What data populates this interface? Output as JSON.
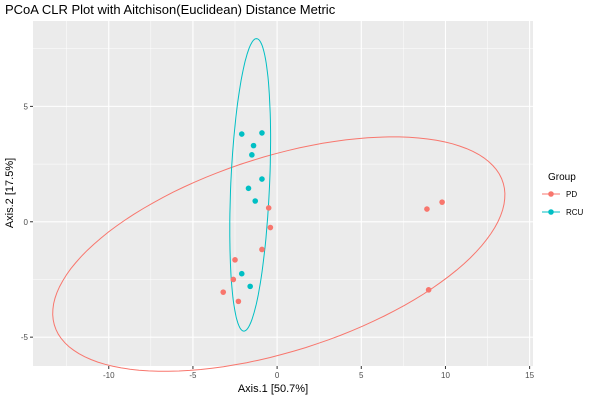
{
  "chart_data": {
    "type": "scatter",
    "title": "PCoA CLR Plot with Aitchison(Euclidean) Distance Metric",
    "xlabel": "Axis.1   [50.7%]",
    "ylabel": "Axis.2   [17.5%]",
    "xlim": [
      -14.5,
      15.2
    ],
    "ylim": [
      -6.25,
      8.7
    ],
    "xticks": [
      -10,
      -5,
      0,
      5,
      10,
      15
    ],
    "yticks": [
      -5,
      0,
      5
    ],
    "grid": true,
    "background": "#ebebeb",
    "legend": {
      "title": "Group",
      "position": "right",
      "entries": [
        "PD",
        "RCU"
      ]
    },
    "series": [
      {
        "name": "PD",
        "color": "#f8766d",
        "points": [
          [
            -0.5,
            0.6
          ],
          [
            -0.4,
            -0.25
          ],
          [
            -0.9,
            -1.2
          ],
          [
            -2.5,
            -1.65
          ],
          [
            -2.6,
            -2.5
          ],
          [
            -3.2,
            -3.05
          ],
          [
            -2.3,
            -3.45
          ],
          [
            8.9,
            0.55
          ],
          [
            9.8,
            0.85
          ],
          [
            9.0,
            -2.95
          ]
        ],
        "ellipse": {
          "cx": 0.1,
          "cy": -1.4,
          "rx": 13.7,
          "ry": 4.3,
          "angle": 12
        }
      },
      {
        "name": "RCU",
        "color": "#00bfc4",
        "points": [
          [
            -2.1,
            3.8
          ],
          [
            -0.9,
            3.85
          ],
          [
            -1.4,
            3.3
          ],
          [
            -1.5,
            2.9
          ],
          [
            -0.9,
            1.85
          ],
          [
            -1.7,
            1.45
          ],
          [
            -1.3,
            0.9
          ],
          [
            -2.1,
            -2.25
          ],
          [
            -1.6,
            -2.8
          ]
        ],
        "ellipse": {
          "cx": -1.6,
          "cy": 1.6,
          "rx": 1.15,
          "ry": 6.35,
          "angle": -3.5
        }
      }
    ]
  }
}
